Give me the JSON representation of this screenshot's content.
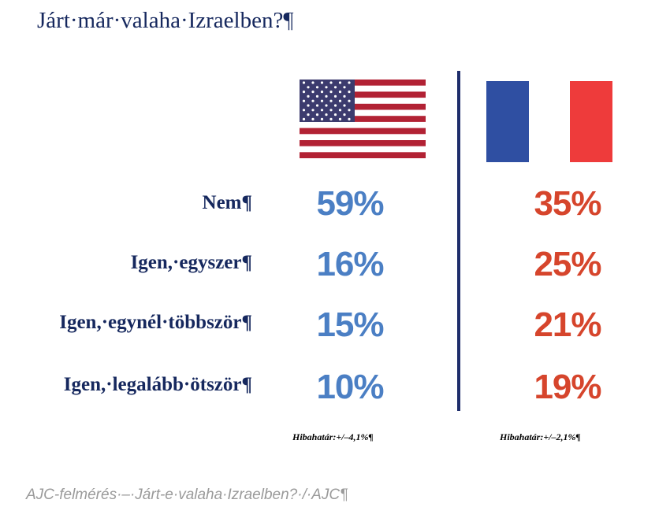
{
  "title": "Járt·már·valaha·Izraelben?¶",
  "rows": [
    {
      "label": "Nem¶",
      "us": "59%",
      "fr": "35%"
    },
    {
      "label": "Igen,·egyszer¶",
      "us": "16%",
      "fr": "25%"
    },
    {
      "label": "Igen,·egynél·többször¶",
      "us": "15%",
      "fr": "21%"
    },
    {
      "label": "Igen,·legalább·ötször¶",
      "us": "10%",
      "fr": "19%"
    }
  ],
  "margin_of_error": {
    "us": "Hibahatár:+/–4,1%¶",
    "fr": "Hibahatár:+/–2,1%¶"
  },
  "footer": "AJC-felmérés·–·Járt-e·valaha·Izraelben?·/·AJC¶",
  "colors": {
    "us": "#4b7fc4",
    "fr": "#d6452c",
    "navy": "#16285e"
  }
}
